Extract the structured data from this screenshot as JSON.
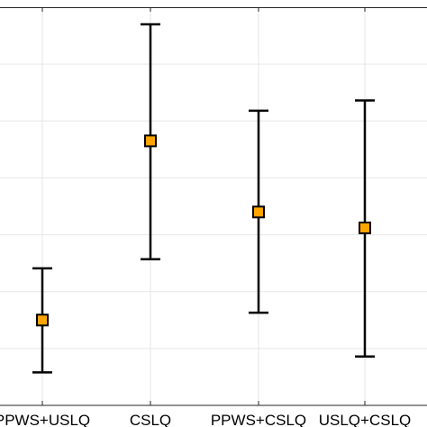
{
  "chart_data": {
    "type": "errorbar",
    "categories": [
      "PPWS+USLQ",
      "CSLQ",
      "PPWS+CSLQ",
      "USLQ+CSLQ"
    ],
    "series": [
      {
        "mean": [
          1.5,
          4.65,
          3.4,
          3.12
        ],
        "lower": [
          0.58,
          2.57,
          1.63,
          0.86
        ],
        "upper": [
          2.41,
          6.7,
          5.18,
          5.36
        ]
      }
    ],
    "ylim": [
      0,
      7
    ],
    "xlabel": "",
    "ylabel": "",
    "title": "",
    "grid": true,
    "colors": {
      "marker_fill": "#FFA500",
      "marker_edge": "#000000",
      "errorbar": "#000000",
      "grid": "#e6e6e6",
      "axes": "#262626"
    }
  }
}
